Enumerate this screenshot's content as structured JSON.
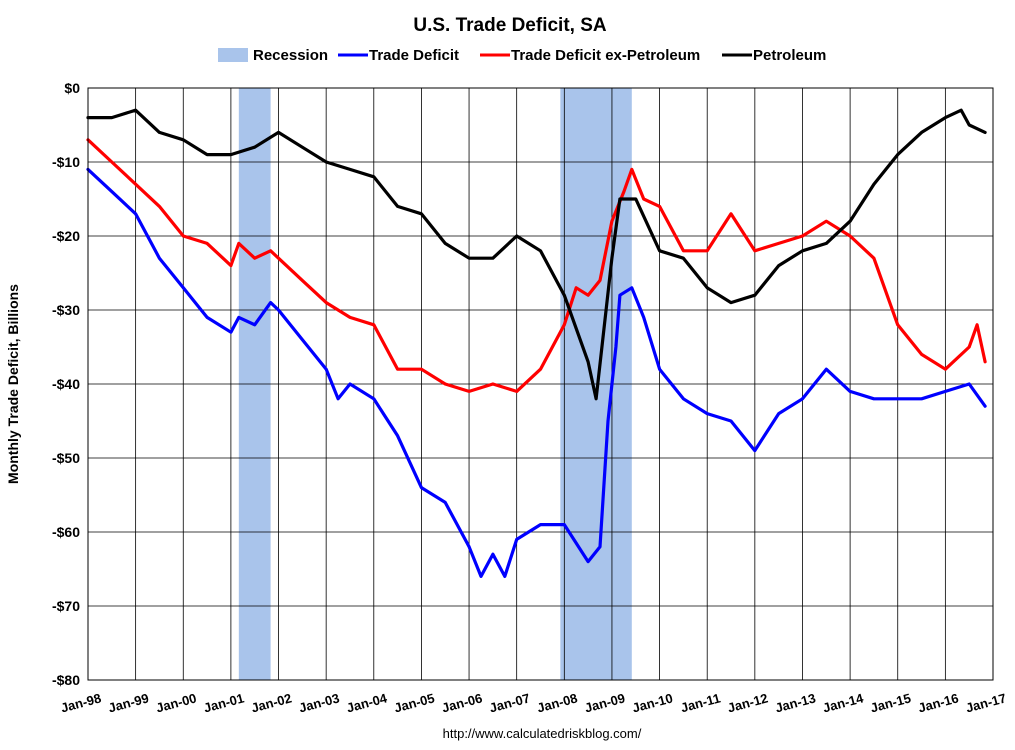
{
  "chart_data": {
    "type": "line",
    "title": "U.S. Trade Deficit, SA",
    "xlabel": "",
    "ylabel": "Monthly Trade Deficit, Billions",
    "source": "http://www.calculatedriskblog.com/",
    "x_tick_labels": [
      "Jan-98",
      "Jan-99",
      "Jan-00",
      "Jan-01",
      "Jan-02",
      "Jan-03",
      "Jan-04",
      "Jan-05",
      "Jan-06",
      "Jan-07",
      "Jan-08",
      "Jan-09",
      "Jan-10",
      "Jan-11",
      "Jan-12",
      "Jan-13",
      "Jan-14",
      "Jan-15",
      "Jan-16",
      "Jan-17"
    ],
    "y_ticks": [
      0,
      -10,
      -20,
      -30,
      -40,
      -50,
      -60,
      -70,
      -80
    ],
    "y_tick_labels": [
      "$0",
      "-$10",
      "-$20",
      "-$30",
      "-$40",
      "-$50",
      "-$60",
      "-$70",
      "-$80"
    ],
    "ylim": [
      -80,
      0
    ],
    "xlim": [
      "1998-01",
      "2017-01"
    ],
    "grid": true,
    "legend": {
      "position": "top",
      "entries": [
        {
          "label": "Recession",
          "color": "#a9c4eb",
          "kind": "area"
        },
        {
          "label": "Trade Deficit",
          "color": "#0000ff",
          "kind": "line"
        },
        {
          "label": "Trade Deficit ex-Petroleum",
          "color": "#ff0000",
          "kind": "line"
        },
        {
          "label": "Petroleum",
          "color": "#000000",
          "kind": "line"
        }
      ]
    },
    "recessions": [
      {
        "label": "Recession",
        "start": "2001-03",
        "end": "2001-11"
      },
      {
        "label": "Recession",
        "start": "2007-12",
        "end": "2009-06"
      }
    ],
    "series": [
      {
        "name": "Trade Deficit",
        "color": "#0000ff",
        "points": [
          [
            "1998-01",
            -11
          ],
          [
            "1998-07",
            -14
          ],
          [
            "1999-01",
            -17
          ],
          [
            "1999-07",
            -23
          ],
          [
            "2000-01",
            -27
          ],
          [
            "2000-07",
            -31
          ],
          [
            "2001-01",
            -33
          ],
          [
            "2001-03",
            -31
          ],
          [
            "2001-07",
            -32
          ],
          [
            "2001-11",
            -29
          ],
          [
            "2002-01",
            -30
          ],
          [
            "2002-07",
            -34
          ],
          [
            "2003-01",
            -38
          ],
          [
            "2003-04",
            -42
          ],
          [
            "2003-07",
            -40
          ],
          [
            "2004-01",
            -42
          ],
          [
            "2004-07",
            -47
          ],
          [
            "2005-01",
            -54
          ],
          [
            "2005-07",
            -56
          ],
          [
            "2006-01",
            -62
          ],
          [
            "2006-04",
            -66
          ],
          [
            "2006-07",
            -63
          ],
          [
            "2006-10",
            -66
          ],
          [
            "2007-01",
            -61
          ],
          [
            "2007-07",
            -59
          ],
          [
            "2008-01",
            -59
          ],
          [
            "2008-07",
            -64
          ],
          [
            "2008-10",
            -62
          ],
          [
            "2008-12",
            -45
          ],
          [
            "2009-02",
            -35
          ],
          [
            "2009-03",
            -28
          ],
          [
            "2009-06",
            -27
          ],
          [
            "2009-09",
            -31
          ],
          [
            "2010-01",
            -38
          ],
          [
            "2010-07",
            -42
          ],
          [
            "2011-01",
            -44
          ],
          [
            "2011-07",
            -45
          ],
          [
            "2012-01",
            -49
          ],
          [
            "2012-07",
            -44
          ],
          [
            "2013-01",
            -42
          ],
          [
            "2013-07",
            -38
          ],
          [
            "2014-01",
            -41
          ],
          [
            "2014-07",
            -42
          ],
          [
            "2015-01",
            -42
          ],
          [
            "2015-07",
            -42
          ],
          [
            "2016-01",
            -41
          ],
          [
            "2016-07",
            -40
          ],
          [
            "2016-11",
            -43
          ]
        ]
      },
      {
        "name": "Trade Deficit ex-Petroleum",
        "color": "#ff0000",
        "points": [
          [
            "1998-01",
            -7
          ],
          [
            "1998-07",
            -10
          ],
          [
            "1999-01",
            -13
          ],
          [
            "1999-07",
            -16
          ],
          [
            "2000-01",
            -20
          ],
          [
            "2000-07",
            -21
          ],
          [
            "2001-01",
            -24
          ],
          [
            "2001-03",
            -21
          ],
          [
            "2001-07",
            -23
          ],
          [
            "2001-11",
            -22
          ],
          [
            "2002-01",
            -23
          ],
          [
            "2002-07",
            -26
          ],
          [
            "2003-01",
            -29
          ],
          [
            "2003-07",
            -31
          ],
          [
            "2004-01",
            -32
          ],
          [
            "2004-07",
            -38
          ],
          [
            "2005-01",
            -38
          ],
          [
            "2005-07",
            -40
          ],
          [
            "2006-01",
            -41
          ],
          [
            "2006-07",
            -40
          ],
          [
            "2007-01",
            -41
          ],
          [
            "2007-07",
            -38
          ],
          [
            "2008-01",
            -32
          ],
          [
            "2008-04",
            -27
          ],
          [
            "2008-07",
            -28
          ],
          [
            "2008-10",
            -26
          ],
          [
            "2009-01",
            -18
          ],
          [
            "2009-04",
            -14
          ],
          [
            "2009-06",
            -11
          ],
          [
            "2009-09",
            -15
          ],
          [
            "2010-01",
            -16
          ],
          [
            "2010-07",
            -22
          ],
          [
            "2011-01",
            -22
          ],
          [
            "2011-07",
            -17
          ],
          [
            "2012-01",
            -22
          ],
          [
            "2012-07",
            -21
          ],
          [
            "2013-01",
            -20
          ],
          [
            "2013-07",
            -18
          ],
          [
            "2014-01",
            -20
          ],
          [
            "2014-07",
            -23
          ],
          [
            "2015-01",
            -32
          ],
          [
            "2015-07",
            -36
          ],
          [
            "2016-01",
            -38
          ],
          [
            "2016-07",
            -35
          ],
          [
            "2016-09",
            -32
          ],
          [
            "2016-11",
            -37
          ]
        ]
      },
      {
        "name": "Petroleum",
        "color": "#000000",
        "points": [
          [
            "1998-01",
            -4
          ],
          [
            "1998-07",
            -4
          ],
          [
            "1999-01",
            -3
          ],
          [
            "1999-07",
            -6
          ],
          [
            "2000-01",
            -7
          ],
          [
            "2000-07",
            -9
          ],
          [
            "2001-01",
            -9
          ],
          [
            "2001-07",
            -8
          ],
          [
            "2002-01",
            -6
          ],
          [
            "2002-07",
            -8
          ],
          [
            "2003-01",
            -10
          ],
          [
            "2003-07",
            -11
          ],
          [
            "2004-01",
            -12
          ],
          [
            "2004-07",
            -16
          ],
          [
            "2005-01",
            -17
          ],
          [
            "2005-07",
            -21
          ],
          [
            "2006-01",
            -23
          ],
          [
            "2006-07",
            -23
          ],
          [
            "2007-01",
            -20
          ],
          [
            "2007-07",
            -22
          ],
          [
            "2008-01",
            -28
          ],
          [
            "2008-07",
            -37
          ],
          [
            "2008-09",
            -42
          ],
          [
            "2009-01",
            -23
          ],
          [
            "2009-03",
            -15
          ],
          [
            "2009-07",
            -15
          ],
          [
            "2010-01",
            -22
          ],
          [
            "2010-07",
            -23
          ],
          [
            "2011-01",
            -27
          ],
          [
            "2011-07",
            -29
          ],
          [
            "2012-01",
            -28
          ],
          [
            "2012-07",
            -24
          ],
          [
            "2013-01",
            -22
          ],
          [
            "2013-07",
            -21
          ],
          [
            "2014-01",
            -18
          ],
          [
            "2014-07",
            -13
          ],
          [
            "2015-01",
            -9
          ],
          [
            "2015-07",
            -6
          ],
          [
            "2016-01",
            -4
          ],
          [
            "2016-05",
            -3
          ],
          [
            "2016-07",
            -5
          ],
          [
            "2016-11",
            -6
          ]
        ]
      }
    ]
  }
}
